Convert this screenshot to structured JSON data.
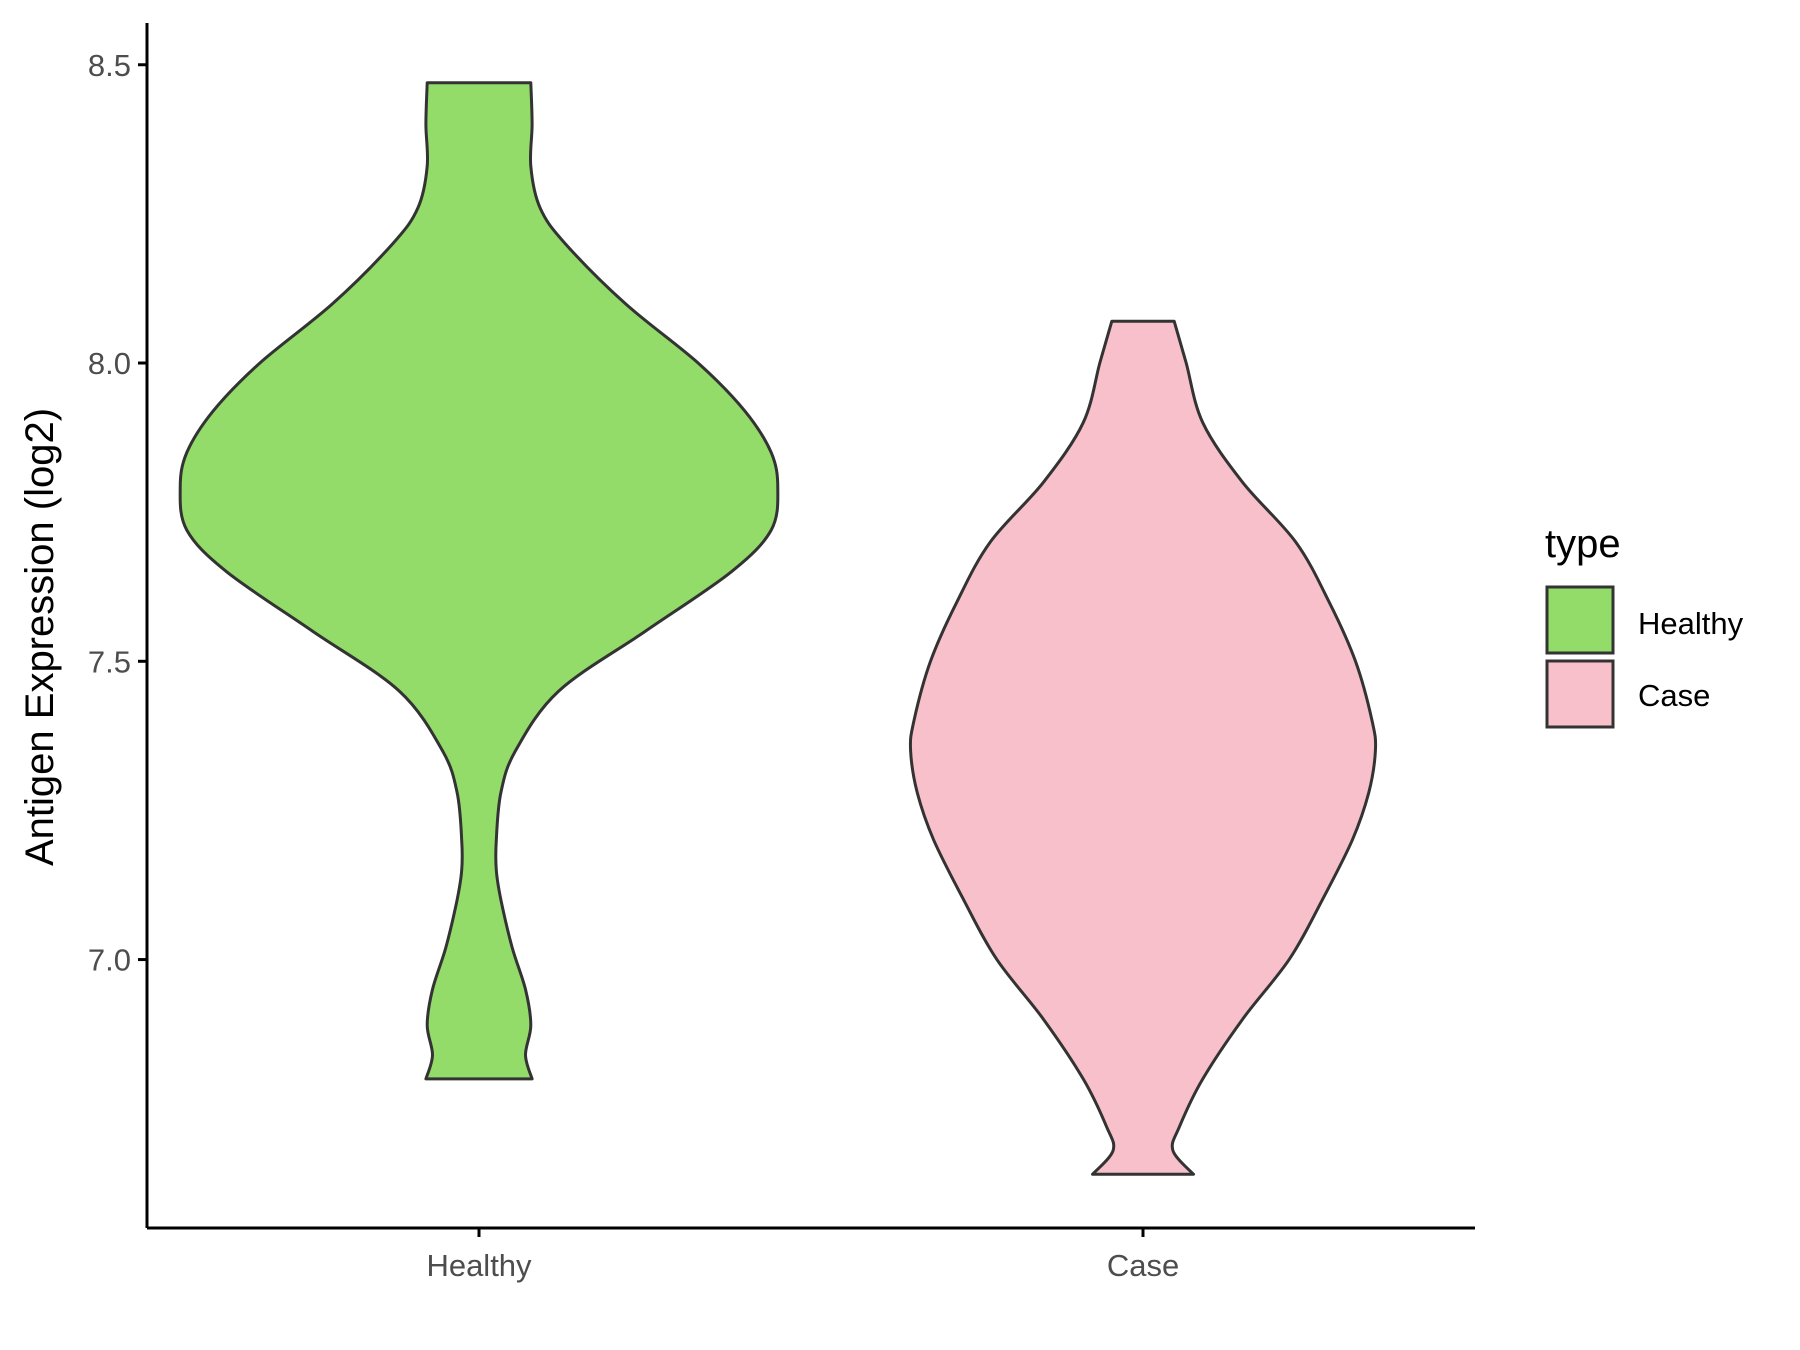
{
  "chart_data": {
    "type": "violin",
    "title": "",
    "xlabel": "",
    "ylabel": "Antigen Expression (log2)",
    "ylim": [
      6.55,
      8.57
    ],
    "yticks": [
      7.0,
      7.5,
      8.0,
      8.5
    ],
    "ytick_labels": [
      "7.0",
      "7.5",
      "8.0",
      "8.5"
    ],
    "categories": [
      "Healthy",
      "Case"
    ],
    "grid": false,
    "legend": {
      "title": "type",
      "position": "right",
      "entries": [
        "Healthy",
        "Case"
      ]
    },
    "colors": {
      "Healthy": "#93dc6a",
      "Case": "#f8c0cb",
      "outline": "#333333"
    },
    "series": [
      {
        "name": "Healthy",
        "min": 6.8,
        "max": 8.47,
        "profile": [
          [
            8.47,
            0.078
          ],
          [
            8.4,
            0.08
          ],
          [
            8.33,
            0.078
          ],
          [
            8.26,
            0.092
          ],
          [
            8.2,
            0.13
          ],
          [
            8.1,
            0.22
          ],
          [
            8.0,
            0.33
          ],
          [
            7.92,
            0.4
          ],
          [
            7.85,
            0.44
          ],
          [
            7.79,
            0.45
          ],
          [
            7.72,
            0.44
          ],
          [
            7.65,
            0.38
          ],
          [
            7.55,
            0.25
          ],
          [
            7.45,
            0.12
          ],
          [
            7.35,
            0.055
          ],
          [
            7.28,
            0.033
          ],
          [
            7.2,
            0.026
          ],
          [
            7.15,
            0.026
          ],
          [
            7.1,
            0.033
          ],
          [
            7.02,
            0.05
          ],
          [
            6.95,
            0.07
          ],
          [
            6.89,
            0.078
          ],
          [
            6.84,
            0.07
          ],
          [
            6.8,
            0.08
          ]
        ]
      },
      {
        "name": "Case",
        "min": 6.64,
        "max": 8.07,
        "profile": [
          [
            8.07,
            0.047
          ],
          [
            8.0,
            0.065
          ],
          [
            7.9,
            0.09
          ],
          [
            7.8,
            0.15
          ],
          [
            7.7,
            0.23
          ],
          [
            7.6,
            0.28
          ],
          [
            7.5,
            0.32
          ],
          [
            7.4,
            0.345
          ],
          [
            7.35,
            0.35
          ],
          [
            7.28,
            0.34
          ],
          [
            7.2,
            0.315
          ],
          [
            7.1,
            0.27
          ],
          [
            7.0,
            0.22
          ],
          [
            6.9,
            0.15
          ],
          [
            6.8,
            0.09
          ],
          [
            6.72,
            0.055
          ],
          [
            6.68,
            0.045
          ],
          [
            6.64,
            0.076
          ]
        ]
      }
    ]
  }
}
